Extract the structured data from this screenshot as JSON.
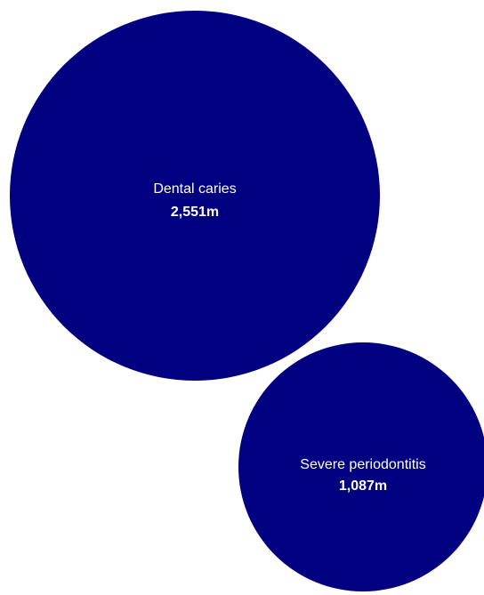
{
  "chart_data": {
    "type": "bubble",
    "bubble_color": "#000080",
    "label_color": "#ffffff",
    "bubbles": [
      {
        "label": "Dental caries",
        "value": 2551,
        "display_value": "2,551m"
      },
      {
        "label": "Severe periodontitis",
        "value": 1087,
        "display_value": "1,087m"
      }
    ]
  }
}
